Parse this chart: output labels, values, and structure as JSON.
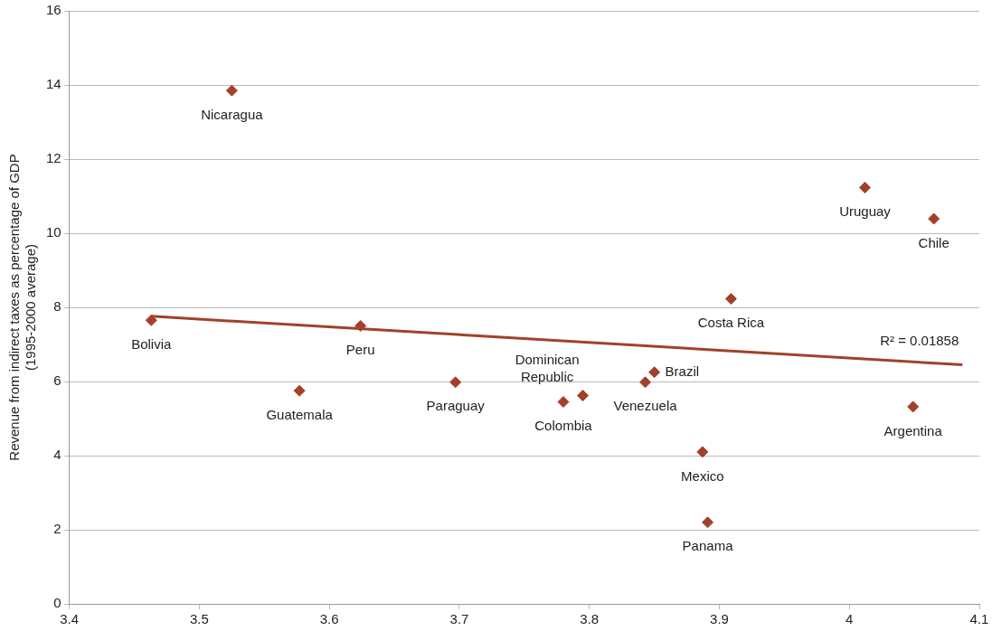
{
  "chart_data": {
    "type": "scatter",
    "ylabel": "Revenue from indirect taxes as percentage of GDP (1995-2000 average)",
    "series": [
      {
        "color": "#a3402b",
        "marker": "diamond",
        "x": [
          3.525,
          3.463,
          3.577,
          3.624,
          3.697,
          3.78,
          3.795,
          3.843,
          3.85,
          3.909,
          3.887,
          3.891,
          4.012,
          4.065,
          4.049
        ],
        "values": [
          13.85,
          7.65,
          5.75,
          7.5,
          5.98,
          5.45,
          5.62,
          5.98,
          6.25,
          8.23,
          4.1,
          2.2,
          11.23,
          10.39,
          5.32
        ]
      },
      {
        "type": "line",
        "color": "#a3402b",
        "marker": "none",
        "line_style": "solid",
        "x": [
          3.463,
          4.087
        ],
        "values": [
          7.76,
          6.45
        ]
      }
    ],
    "xlim": [
      3.4,
      4.1
    ],
    "xticks": [
      3.4,
      3.5,
      3.6,
      3.7,
      3.8,
      3.9,
      4,
      4.1
    ],
    "ylim": [
      0,
      16
    ],
    "yticks": [
      0,
      2,
      4,
      6,
      8,
      10,
      12,
      14,
      16
    ],
    "grid": "y",
    "legend": false,
    "annotations": [
      {
        "text": "Nicaragua",
        "x": 3.525,
        "y": 13.85
      },
      {
        "text": "Bolivia",
        "x": 3.463,
        "y": 7.65
      },
      {
        "text": "Guatemala",
        "x": 3.577,
        "y": 5.75
      },
      {
        "text": "Peru",
        "x": 3.624,
        "y": 7.5
      },
      {
        "text": "Paraguay",
        "x": 3.697,
        "y": 5.98
      },
      {
        "text": "Colombia",
        "x": 3.78,
        "y": 5.45
      },
      {
        "text": "Dominican Republic",
        "x": 3.795,
        "y": 5.62
      },
      {
        "text": "Venezuela",
        "x": 3.843,
        "y": 5.98
      },
      {
        "text": "Brazil",
        "x": 3.85,
        "y": 6.25
      },
      {
        "text": "Costa Rica",
        "x": 3.909,
        "y": 8.23
      },
      {
        "text": "Mexico",
        "x": 3.887,
        "y": 4.1
      },
      {
        "text": "Panama",
        "x": 3.891,
        "y": 2.2
      },
      {
        "text": "Uruguay",
        "x": 4.012,
        "y": 11.23
      },
      {
        "text": "Chile",
        "x": 4.065,
        "y": 10.39
      },
      {
        "text": "Argentina",
        "x": 4.049,
        "y": 5.32
      },
      {
        "text": "R² = 0.01858",
        "x": 4.087,
        "y": 6.45
      }
    ]
  }
}
